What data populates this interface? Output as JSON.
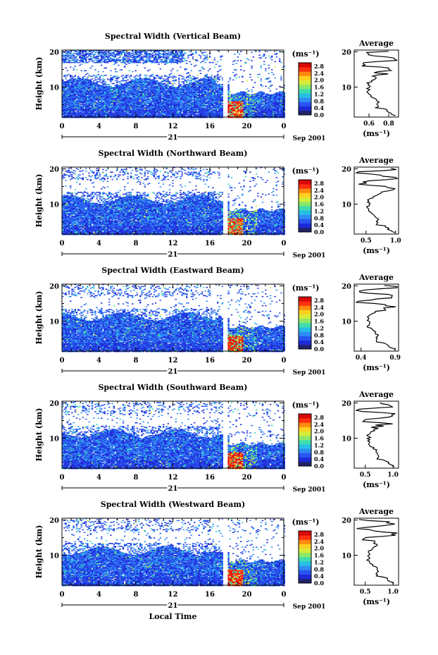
{
  "figure": {
    "colorbar_unit": "(ms⁻¹)",
    "colorbar_ticks": [
      "0.0",
      "0.4",
      "0.8",
      "1.2",
      "1.6",
      "2.0",
      "2.4",
      "2.8"
    ],
    "ylabel": "Height (km)",
    "height_ticks": [
      "10",
      "20"
    ],
    "time_ticks": [
      "0",
      "4",
      "8",
      "12",
      "16",
      "20",
      "0"
    ],
    "day_label": "21",
    "month_label": "Sep 2001",
    "xlabel": "Local Time",
    "avg_title": "Average",
    "avg_xlabel": "(ms⁻¹)",
    "colors": [
      "#22226a",
      "#1d2ad8",
      "#2855f0",
      "#2f8cf6",
      "#27bfe6",
      "#3fdcae",
      "#8ce86a",
      "#d6ec3a",
      "#ffd020",
      "#ff8a10",
      "#ff3010",
      "#d80808"
    ]
  },
  "chart_data": [
    {
      "type": "heatmap",
      "title": "Spectral Width (Vertical Beam)",
      "xlabel": "",
      "ylabel": "Height (km)",
      "x_range_hours": [
        0,
        24
      ],
      "y_range_km": [
        1.5,
        20.5
      ],
      "colorbar_range": [
        0.0,
        3.0
      ],
      "data_gap_hour": 17.6,
      "profile": {
        "title": "Average",
        "xlabel": "(ms⁻¹)",
        "xticks": [
          "0.6",
          "0.8"
        ],
        "xlim": [
          0.45,
          0.9
        ]
      }
    },
    {
      "type": "heatmap",
      "title": "Spectral Width (Northward Beam)",
      "xlabel": "",
      "ylabel": "Height (km)",
      "x_range_hours": [
        0,
        24
      ],
      "y_range_km": [
        1.5,
        20.5
      ],
      "colorbar_range": [
        0.0,
        3.0
      ],
      "data_gap_hour": 17.6,
      "profile": {
        "title": "Average",
        "xlabel": "(ms⁻¹)",
        "xticks": [
          "0.5",
          "1.0"
        ],
        "xlim": [
          0.3,
          1.05
        ]
      }
    },
    {
      "type": "heatmap",
      "title": "Spectral Width (Eastward Beam)",
      "xlabel": "",
      "ylabel": "Height (km)",
      "x_range_hours": [
        0,
        24
      ],
      "y_range_km": [
        1.5,
        20.5
      ],
      "colorbar_range": [
        0.0,
        3.0
      ],
      "data_gap_hour": 17.6,
      "profile": {
        "title": "Average",
        "xlabel": "(ms⁻¹)",
        "xticks": [
          "0.4",
          "0.9"
        ],
        "xlim": [
          0.3,
          0.95
        ]
      }
    },
    {
      "type": "heatmap",
      "title": "Spectral Width (Southward Beam)",
      "xlabel": "",
      "ylabel": "Height (km)",
      "x_range_hours": [
        0,
        24
      ],
      "y_range_km": [
        1.5,
        20.5
      ],
      "colorbar_range": [
        0.0,
        3.0
      ],
      "data_gap_hour": 17.6,
      "profile": {
        "title": "Average",
        "xlabel": "(ms⁻¹)",
        "xticks": [
          "0.5",
          "1.0"
        ],
        "xlim": [
          0.3,
          1.1
        ]
      }
    },
    {
      "type": "heatmap",
      "title": "Spectral Width (Westward Beam)",
      "xlabel": "Local Time",
      "ylabel": "Height (km)",
      "x_range_hours": [
        0,
        24
      ],
      "y_range_km": [
        1.5,
        20.5
      ],
      "colorbar_range": [
        0.0,
        3.0
      ],
      "data_gap_hour": 17.6,
      "profile": {
        "title": "Average",
        "xlabel": "(ms⁻¹)",
        "xticks": [
          "0.5",
          "1.0"
        ],
        "xlim": [
          0.3,
          1.1
        ]
      }
    }
  ]
}
